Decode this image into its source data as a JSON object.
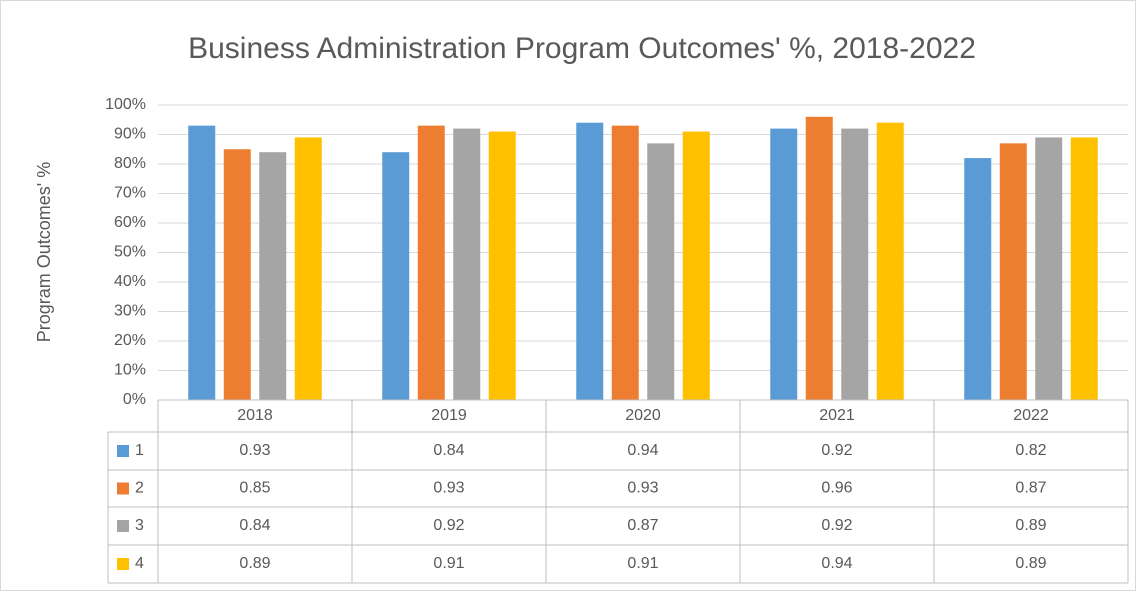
{
  "chart_data": {
    "type": "bar",
    "title": "Business Administration Program Outcomes' %, 2018-2022",
    "y_label": "Program Outcomes' %",
    "categories": [
      "2018",
      "2019",
      "2020",
      "2021",
      "2022"
    ],
    "series": [
      {
        "name": "1",
        "color": "#5b9bd5",
        "values": [
          0.93,
          0.84,
          0.94,
          0.92,
          0.82
        ]
      },
      {
        "name": "2",
        "color": "#ed7d31",
        "values": [
          0.85,
          0.93,
          0.93,
          0.96,
          0.87
        ]
      },
      {
        "name": "3",
        "color": "#a5a5a5",
        "values": [
          0.84,
          0.92,
          0.87,
          0.92,
          0.89
        ]
      },
      {
        "name": "4",
        "color": "#ffc000",
        "values": [
          0.89,
          0.91,
          0.91,
          0.94,
          0.89
        ]
      }
    ],
    "ylim": [
      0,
      1
    ],
    "yticks": [
      {
        "value": 0,
        "label": "0%"
      },
      {
        "value": 0.1,
        "label": "10%"
      },
      {
        "value": 0.2,
        "label": "20%"
      },
      {
        "value": 0.3,
        "label": "30%"
      },
      {
        "value": 0.4,
        "label": "40%"
      },
      {
        "value": 0.5,
        "label": "50%"
      },
      {
        "value": 0.6,
        "label": "60%"
      },
      {
        "value": 0.7,
        "label": "70%"
      },
      {
        "value": 0.8,
        "label": "80%"
      },
      {
        "value": 0.9,
        "label": "90%"
      },
      {
        "value": 1,
        "label": "100%"
      }
    ],
    "grid": true
  }
}
